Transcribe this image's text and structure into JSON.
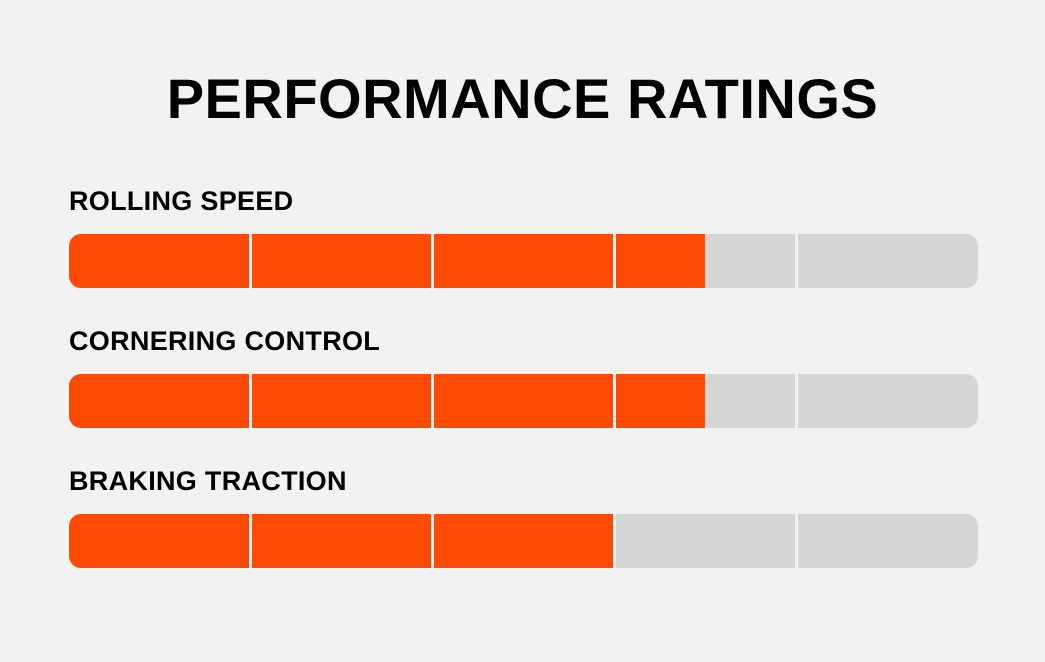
{
  "colors": {
    "fill": "#ff4a06",
    "track": "#d8d6d4",
    "background": "#f2f2f2",
    "text": "#000000"
  },
  "chart_data": {
    "type": "bar",
    "title": "PERFORMANCE RATINGS",
    "scale_max": 5,
    "categories": [
      "ROLLING SPEED",
      "CORNERING CONTROL",
      "BRAKING TRACTION"
    ],
    "values": [
      3.5,
      3.5,
      3
    ],
    "xlabel": "",
    "ylabel": "",
    "grid": false
  }
}
